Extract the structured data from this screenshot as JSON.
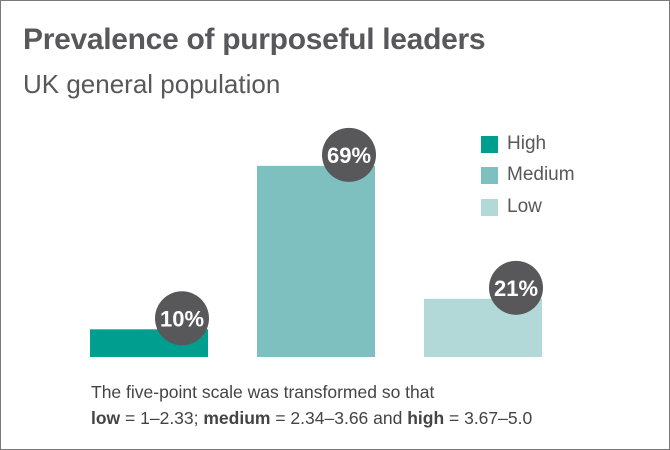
{
  "chart_data": {
    "type": "bar",
    "title": "Prevalence of purposeful leaders",
    "subtitle": "UK general population",
    "categories": [
      "High",
      "Medium",
      "Low"
    ],
    "values": [
      10,
      69,
      21
    ],
    "data_labels": [
      "10%",
      "69%",
      "21%"
    ],
    "colors": [
      "#009e8f",
      "#7dc0bf",
      "#b2d8d8"
    ],
    "label_bubble_color": "#58585a",
    "unit": "%",
    "ylim": [
      0,
      100
    ],
    "grid": false,
    "axes_visible": false,
    "legend": {
      "placement": "top-right",
      "entries": [
        "High",
        "Medium",
        "Low"
      ]
    }
  },
  "note": {
    "line1": "The five-point scale was transformed so that",
    "low_term": "low",
    "low_range": " = 1–2.33; ",
    "medium_term": "medium",
    "medium_range": " = 2.34–3.66 and ",
    "high_term": "high",
    "high_range": " = 3.67–5.0"
  }
}
